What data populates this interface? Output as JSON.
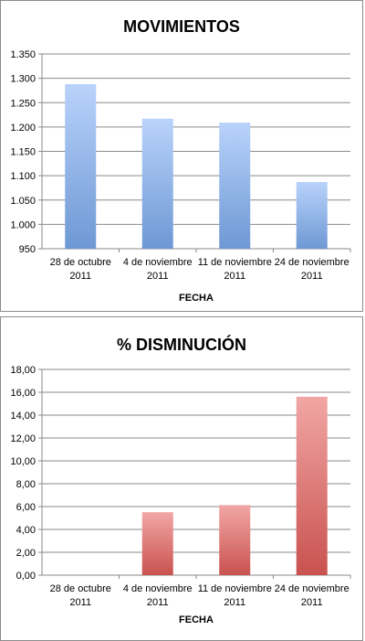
{
  "chart_data": [
    {
      "type": "bar",
      "title": "MOVIMIENTOS",
      "xlabel": "FECHA",
      "ylabel": "",
      "categories": [
        [
          "28 de octubre",
          "2011"
        ],
        [
          "4 de noviembre",
          "2011"
        ],
        [
          "11 de noviembre",
          "2011"
        ],
        [
          "24 de noviembre",
          "2011"
        ]
      ],
      "values": [
        1288,
        1217,
        1209,
        1087
      ],
      "ylim": [
        950,
        1350
      ],
      "yticks": [
        "950",
        "1.000",
        "1.050",
        "1.100",
        "1.150",
        "1.200",
        "1.250",
        "1.300",
        "1.350"
      ],
      "grid": true,
      "color_top": "#b9d3fb",
      "color_bottom": "#6e98d4"
    },
    {
      "type": "bar",
      "title": "% DISMINUCIÓN",
      "xlabel": "FECHA",
      "ylabel": "",
      "categories": [
        [
          "28 de octubre",
          "2011"
        ],
        [
          "4 de noviembre",
          "2011"
        ],
        [
          "11 de noviembre",
          "2011"
        ],
        [
          "24 de noviembre",
          "2011"
        ]
      ],
      "values": [
        0,
        5.51,
        6.13,
        15.61
      ],
      "ylim": [
        0,
        18
      ],
      "yticks": [
        "0,00",
        "2,00",
        "4,00",
        "6,00",
        "8,00",
        "10,00",
        "12,00",
        "14,00",
        "16,00",
        "18,00"
      ],
      "grid": true,
      "color_top": "#f1a7a5",
      "color_bottom": "#c9524f"
    }
  ]
}
